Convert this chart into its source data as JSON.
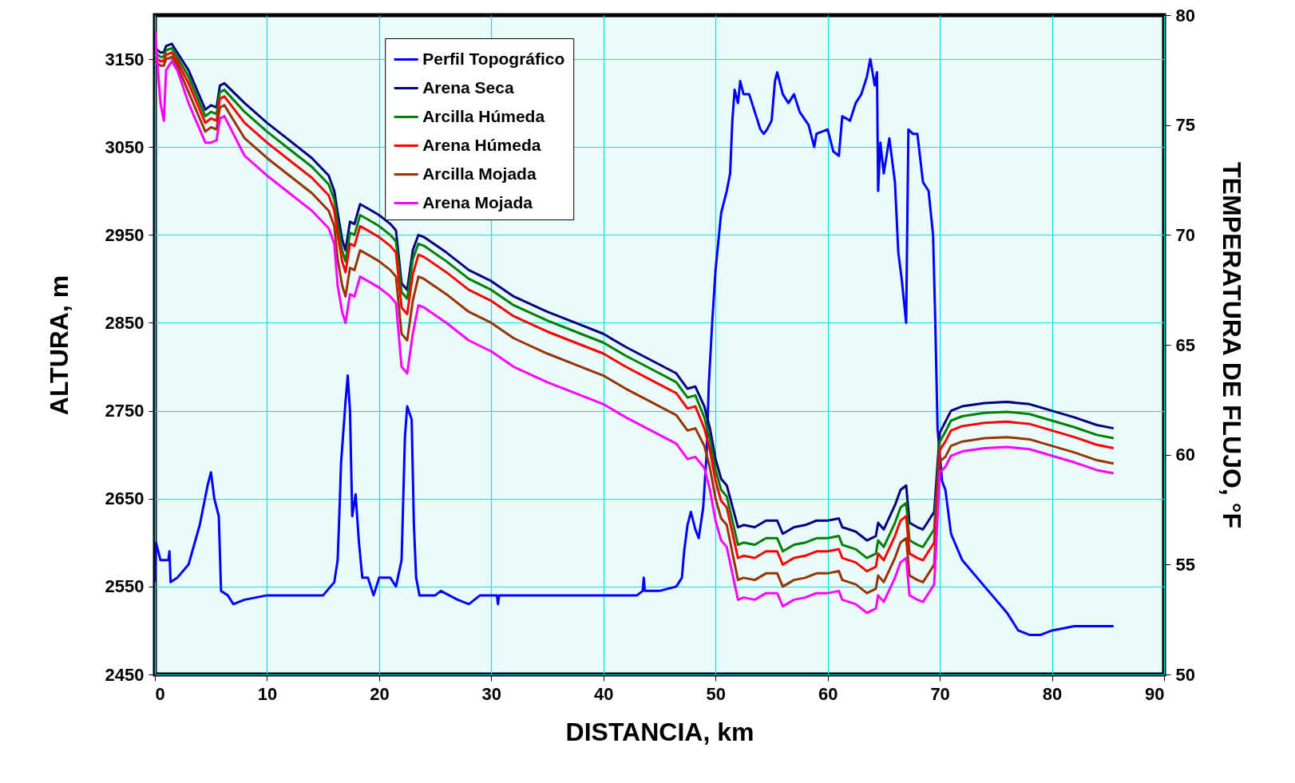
{
  "chart_data": {
    "type": "line",
    "xlabel": "DISTANCIA, km",
    "ylabel": "ALTURA, m",
    "y2label": "TEMPERATURA DE FLUJO, °F",
    "xlim": [
      0,
      90
    ],
    "xticks": [
      0,
      10,
      20,
      30,
      40,
      50,
      60,
      70,
      80,
      90
    ],
    "ylim": [
      2450,
      3200
    ],
    "yticks": [
      2450,
      2550,
      2650,
      2750,
      2850,
      2950,
      3050,
      3150
    ],
    "y2lim": [
      50,
      80
    ],
    "y2ticks": [
      50,
      55,
      60,
      65,
      70,
      75,
      80
    ],
    "grid": true,
    "legend": "top",
    "x": [
      0,
      0.5,
      0.8,
      1,
      1.5,
      2,
      3,
      4,
      4.5,
      5,
      5.5,
      5.8,
      6.2,
      8,
      10,
      12,
      14,
      15.5,
      16,
      16.3,
      16.7,
      17,
      17.4,
      17.8,
      18.3,
      19,
      20,
      21,
      21.5,
      22,
      22.5,
      23,
      23.5,
      24,
      26,
      28,
      30,
      32,
      35,
      38,
      40,
      42,
      43.5,
      45,
      46.5,
      47.5,
      48.2,
      49,
      49.5,
      50,
      50.5,
      51,
      52,
      52.5,
      53.5,
      54.5,
      55.5,
      56,
      57,
      58,
      59,
      60,
      61,
      61.3,
      62.5,
      63.5,
      64.3,
      64.5,
      65,
      66,
      66.5,
      67,
      67.3,
      68,
      68.5,
      69,
      69.5,
      70,
      70.5,
      71,
      72,
      74,
      76,
      78,
      80,
      82,
      84,
      85.5
    ],
    "series": [
      {
        "name": "Perfil Topográfico",
        "color": "#0000ff",
        "x": [
          0,
          0.1,
          0.5,
          1.2,
          1.3,
          1.4,
          2,
          3,
          4,
          4.7,
          5,
          5.3,
          5.7,
          5.9,
          6.5,
          7,
          8,
          10,
          15,
          16,
          16.3,
          16.5,
          16.6,
          17,
          17.2,
          17.4,
          17.6,
          17.9,
          18.2,
          18.5,
          19,
          19.5,
          20,
          21,
          21.5,
          22,
          22.3,
          22.5,
          22.9,
          23.1,
          23.3,
          23.6,
          25,
          25.5,
          27,
          28,
          29,
          30.5,
          30.6,
          30.7,
          35,
          43,
          43.5,
          43.6,
          43.7,
          45,
          46.5,
          47,
          47.2,
          47.5,
          47.8,
          48.2,
          48.5,
          48.9,
          49.2,
          49.4,
          49.7,
          50,
          50.5,
          51,
          51.3,
          51.5,
          51.7,
          52,
          52.2,
          52.5,
          53,
          53.5,
          54,
          54.3,
          54.6,
          55,
          55.3,
          55.5,
          56,
          56.5,
          57,
          57.5,
          58.3,
          58.8,
          59,
          60,
          60.5,
          61,
          61.3,
          62,
          62.5,
          63,
          63.5,
          63.8,
          64.2,
          64.4,
          64.5,
          64.7,
          65,
          65.5,
          66,
          66.3,
          66.6,
          67,
          67.2,
          67.6,
          68,
          68.5,
          69,
          69.4,
          69.6,
          69.8,
          70,
          70.2,
          70.5,
          71,
          72,
          74,
          76,
          77,
          78,
          79,
          80,
          82,
          85.5
        ],
        "values": [
          2555,
          2600,
          2580,
          2580,
          2590,
          2555,
          2560,
          2575,
          2620,
          2665,
          2680,
          2650,
          2630,
          2545,
          2540,
          2530,
          2535,
          2540,
          2540,
          2555,
          2580,
          2650,
          2690,
          2760,
          2790,
          2750,
          2630,
          2655,
          2600,
          2560,
          2560,
          2540,
          2560,
          2560,
          2550,
          2580,
          2720,
          2755,
          2740,
          2620,
          2560,
          2540,
          2540,
          2545,
          2535,
          2530,
          2540,
          2540,
          2530,
          2540,
          2540,
          2540,
          2545,
          2560,
          2545,
          2545,
          2550,
          2560,
          2590,
          2620,
          2635,
          2615,
          2605,
          2640,
          2700,
          2780,
          2850,
          2910,
          2975,
          3000,
          3020,
          3080,
          3115,
          3100,
          3125,
          3110,
          3110,
          3090,
          3070,
          3065,
          3070,
          3080,
          3125,
          3135,
          3110,
          3100,
          3110,
          3090,
          3075,
          3050,
          3065,
          3070,
          3045,
          3040,
          3085,
          3080,
          3100,
          3110,
          3130,
          3150,
          3120,
          3135,
          3000,
          3055,
          3020,
          3060,
          3010,
          2930,
          2900,
          2850,
          3070,
          3065,
          3065,
          3010,
          3000,
          2950,
          2850,
          2730,
          2700,
          2670,
          2660,
          2610,
          2580,
          2550,
          2520,
          2500,
          2495,
          2495,
          2500,
          2505,
          2505
        ]
      },
      {
        "name": "Arena  Seca",
        "color": "#000080",
        "axis": "y2",
        "values": [
          78.5,
          78.3,
          78.3,
          78.6,
          78.7,
          78.3,
          77.5,
          76.3,
          75.7,
          75.9,
          75.8,
          76.8,
          76.9,
          76.0,
          75.1,
          74.3,
          73.5,
          72.7,
          72.0,
          71.0,
          69.8,
          69.3,
          70.6,
          70.5,
          71.4,
          71.2,
          70.9,
          70.5,
          70.2,
          67.8,
          67.5,
          69.3,
          70.0,
          69.9,
          69.2,
          68.4,
          67.9,
          67.2,
          66.5,
          65.9,
          65.5,
          64.9,
          64.5,
          64.1,
          63.7,
          63.0,
          63.1,
          62.2,
          61.2,
          59.8,
          58.9,
          58.6,
          56.7,
          56.8,
          56.7,
          57.0,
          57.0,
          56.4,
          56.7,
          56.8,
          57.0,
          57.0,
          57.1,
          56.7,
          56.5,
          56.1,
          56.3,
          56.9,
          56.6,
          57.7,
          58.4,
          58.6,
          56.9,
          56.7,
          56.6,
          57.0,
          57.4,
          61.0,
          61.5,
          62.0,
          62.2,
          62.35,
          62.4,
          62.3,
          62.0,
          61.7,
          61.35,
          61.2
        ]
      },
      {
        "name": "Arcilla  Húmeda",
        "color": "#008000",
        "axis": "y2",
        "values": [
          78.3,
          78.1,
          78.1,
          78.4,
          78.5,
          78.1,
          77.2,
          76.0,
          75.4,
          75.6,
          75.5,
          76.5,
          76.6,
          75.6,
          74.7,
          73.9,
          73.1,
          72.3,
          71.6,
          70.5,
          69.3,
          68.8,
          70.1,
          70.0,
          70.9,
          70.7,
          70.4,
          70.0,
          69.7,
          67.4,
          67.1,
          68.9,
          69.6,
          69.5,
          68.8,
          68.0,
          67.5,
          66.8,
          66.1,
          65.5,
          65.1,
          64.5,
          64.1,
          63.7,
          63.3,
          62.6,
          62.7,
          61.7,
          60.7,
          59.3,
          58.4,
          58.1,
          55.9,
          56.0,
          55.9,
          56.2,
          56.2,
          55.6,
          55.9,
          56.0,
          56.2,
          56.2,
          56.3,
          55.9,
          55.7,
          55.3,
          55.5,
          56.1,
          55.8,
          56.9,
          57.6,
          57.8,
          56.1,
          55.9,
          55.8,
          56.2,
          56.6,
          60.6,
          61.05,
          61.55,
          61.75,
          61.9,
          61.95,
          61.85,
          61.55,
          61.25,
          60.9,
          60.75
        ]
      },
      {
        "name": "Arena  Húmeda",
        "color": "#ff0000",
        "axis": "y2",
        "values": [
          78.1,
          77.9,
          77.9,
          78.2,
          78.3,
          77.9,
          76.9,
          75.7,
          75.1,
          75.3,
          75.2,
          76.2,
          76.3,
          75.1,
          74.2,
          73.4,
          72.6,
          71.8,
          71.1,
          70.0,
          68.8,
          68.3,
          69.6,
          69.5,
          70.4,
          70.2,
          69.9,
          69.5,
          69.2,
          66.7,
          66.4,
          68.2,
          69.1,
          69.0,
          68.3,
          67.5,
          67.0,
          66.3,
          65.6,
          65.0,
          64.6,
          64.0,
          63.6,
          63.2,
          62.8,
          62.1,
          62.2,
          61.2,
          60.2,
          58.8,
          57.9,
          57.6,
          55.3,
          55.4,
          55.3,
          55.6,
          55.6,
          55.0,
          55.3,
          55.4,
          55.6,
          55.6,
          55.7,
          55.3,
          55.1,
          54.7,
          54.9,
          55.5,
          55.2,
          56.3,
          57.0,
          57.2,
          55.5,
          55.3,
          55.2,
          55.6,
          56.0,
          60.2,
          60.6,
          61.1,
          61.3,
          61.45,
          61.5,
          61.4,
          61.1,
          60.8,
          60.45,
          60.3
        ]
      },
      {
        "name": "Arcilla  Mojada",
        "color": "#993300",
        "axis": "y2",
        "values": [
          77.9,
          77.7,
          77.7,
          78.0,
          78.1,
          77.7,
          76.5,
          75.3,
          74.7,
          74.9,
          74.8,
          75.8,
          75.9,
          74.4,
          73.5,
          72.7,
          71.9,
          71.1,
          70.4,
          68.9,
          67.7,
          67.2,
          68.5,
          68.4,
          69.3,
          69.1,
          68.8,
          68.4,
          68.1,
          65.5,
          65.2,
          67.0,
          68.1,
          68.0,
          67.3,
          66.5,
          66.0,
          65.3,
          64.6,
          64.0,
          63.6,
          63.0,
          62.6,
          62.2,
          61.8,
          61.1,
          61.2,
          60.4,
          59.4,
          58.0,
          57.1,
          56.8,
          54.3,
          54.4,
          54.3,
          54.6,
          54.6,
          54.0,
          54.3,
          54.4,
          54.6,
          54.6,
          54.7,
          54.3,
          54.1,
          53.7,
          53.9,
          54.5,
          54.2,
          55.3,
          56.0,
          56.2,
          54.5,
          54.3,
          54.2,
          54.6,
          55.0,
          59.7,
          59.9,
          60.4,
          60.6,
          60.75,
          60.8,
          60.7,
          60.4,
          60.1,
          59.75,
          59.6
        ]
      },
      {
        "name": "Arena  Mojada",
        "color": "#ff00ff",
        "axis": "y2",
        "values": [
          79.3,
          76.0,
          75.2,
          77.5,
          77.9,
          77.5,
          76.0,
          74.8,
          74.2,
          74.2,
          74.3,
          75.3,
          75.4,
          73.6,
          72.7,
          71.9,
          71.1,
          70.3,
          69.6,
          67.7,
          66.5,
          66.0,
          67.3,
          67.2,
          68.1,
          67.9,
          67.6,
          67.2,
          66.9,
          64.0,
          63.7,
          65.5,
          66.8,
          66.7,
          66.0,
          65.2,
          64.7,
          64.0,
          63.3,
          62.7,
          62.3,
          61.7,
          61.3,
          60.9,
          60.5,
          59.8,
          59.9,
          59.4,
          58.4,
          57.0,
          56.1,
          55.8,
          53.4,
          53.5,
          53.4,
          53.7,
          53.7,
          53.1,
          53.4,
          53.5,
          53.7,
          53.7,
          53.8,
          53.4,
          53.2,
          52.8,
          53.0,
          53.6,
          53.3,
          54.4,
          55.1,
          55.3,
          53.6,
          53.4,
          53.3,
          53.7,
          54.1,
          59.2,
          59.45,
          59.95,
          60.15,
          60.3,
          60.35,
          60.25,
          59.95,
          59.65,
          59.3,
          59.15
        ]
      }
    ]
  }
}
